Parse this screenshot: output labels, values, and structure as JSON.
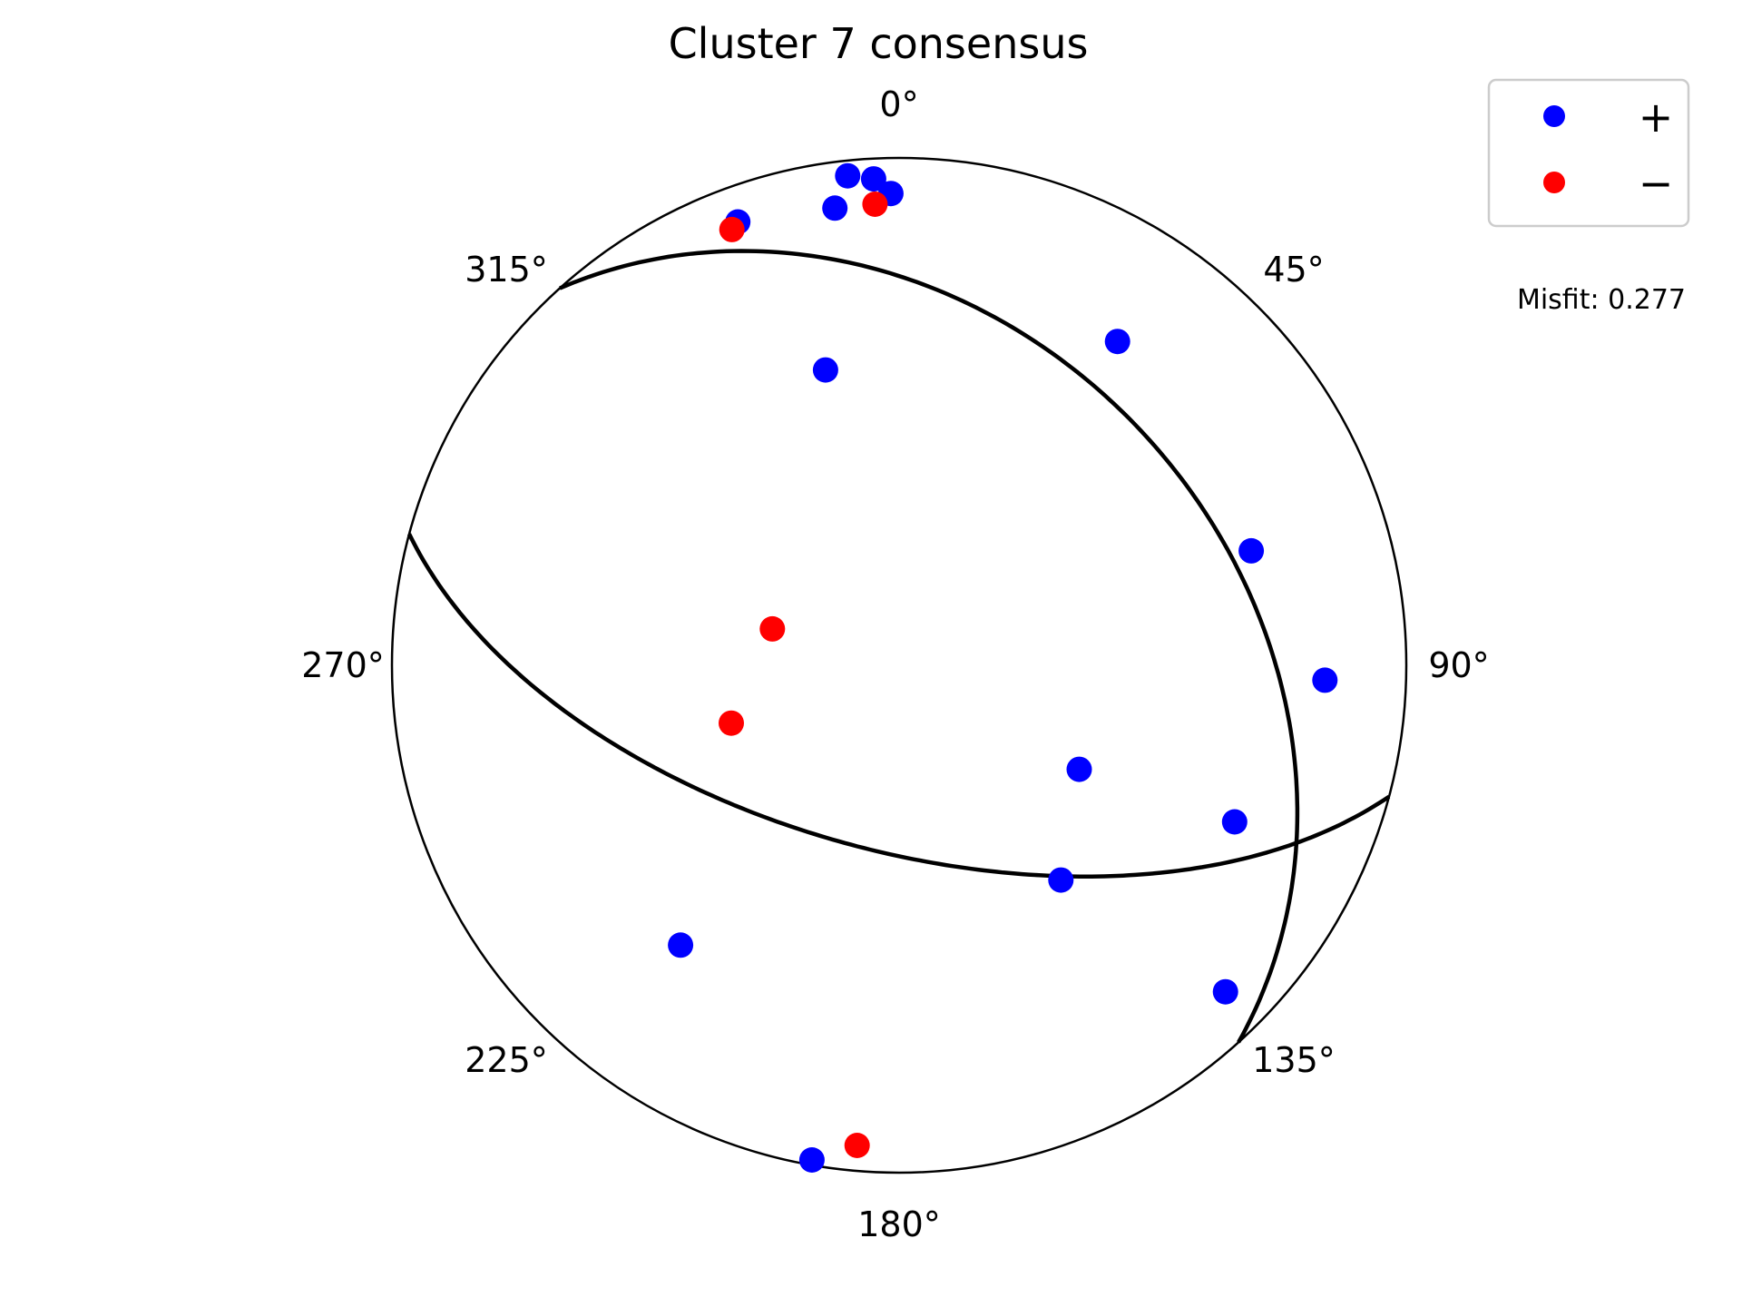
{
  "chart_data": {
    "type": "scatter",
    "title": "Cluster 7 consensus",
    "projection": "polar (stereonet / focal sphere), azimuth clockwise from north",
    "azimuth_ticks": [
      {
        "deg": 0,
        "label": "0°"
      },
      {
        "deg": 45,
        "label": "45°"
      },
      {
        "deg": 90,
        "label": "90°"
      },
      {
        "deg": 135,
        "label": "135°"
      },
      {
        "deg": 180,
        "label": "180°"
      },
      {
        "deg": 225,
        "label": "225°"
      },
      {
        "deg": 270,
        "label": "270°"
      },
      {
        "deg": 315,
        "label": "315°"
      }
    ],
    "radius_range": [
      0,
      1
    ],
    "grid": false,
    "legend": {
      "placement": "top-right",
      "entries": [
        {
          "label": "+",
          "color": "#0000ff"
        },
        {
          "label": "−",
          "color": "#ff0000"
        }
      ]
    },
    "annotation": "Misfit: 0.277",
    "series": [
      {
        "name": "+",
        "color": "#0000ff",
        "points": [
          {
            "azimuth": 354,
            "radius": 0.97
          },
          {
            "azimuth": 357,
            "radius": 0.96
          },
          {
            "azimuth": 359,
            "radius": 0.93
          },
          {
            "azimuth": 352,
            "radius": 0.91
          },
          {
            "azimuth": 340,
            "radius": 0.93
          },
          {
            "azimuth": 34,
            "radius": 0.77
          },
          {
            "azimuth": 346,
            "radius": 0.6
          },
          {
            "azimuth": 72,
            "radius": 0.73
          },
          {
            "azimuth": 92,
            "radius": 0.84
          },
          {
            "azimuth": 120,
            "radius": 0.41
          },
          {
            "azimuth": 115,
            "radius": 0.73
          },
          {
            "azimuth": 143,
            "radius": 0.53
          },
          {
            "azimuth": 135,
            "radius": 0.91
          },
          {
            "azimuth": 218,
            "radius": 0.7
          },
          {
            "azimuth": 190,
            "radius": 0.99
          }
        ]
      },
      {
        "name": "−",
        "color": "#ff0000",
        "points": [
          {
            "azimuth": 357,
            "radius": 0.91
          },
          {
            "azimuth": 339,
            "radius": 0.92
          },
          {
            "azimuth": 286,
            "radius": 0.26
          },
          {
            "azimuth": 251,
            "radius": 0.35
          },
          {
            "azimuth": 185,
            "radius": 0.95
          }
        ]
      }
    ],
    "nodal_planes": [
      {
        "strike": 318,
        "dip": 34
      },
      {
        "strike": 105,
        "dip": 60
      }
    ]
  }
}
